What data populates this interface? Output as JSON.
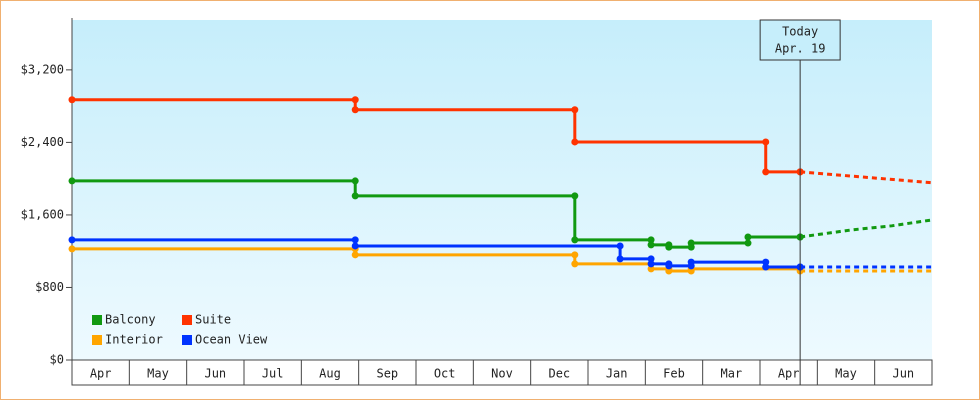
{
  "chart_data": {
    "type": "step-line",
    "xlim": [
      0,
      15
    ],
    "xticks": [
      {
        "value": 0,
        "label": "Apr"
      },
      {
        "value": 1,
        "label": "May"
      },
      {
        "value": 2,
        "label": "Jun"
      },
      {
        "value": 3,
        "label": "Jul"
      },
      {
        "value": 4,
        "label": "Aug"
      },
      {
        "value": 5,
        "label": "Sep"
      },
      {
        "value": 6,
        "label": "Oct"
      },
      {
        "value": 7,
        "label": "Nov"
      },
      {
        "value": 8,
        "label": "Dec"
      },
      {
        "value": 9,
        "label": "Jan"
      },
      {
        "value": 10,
        "label": "Feb"
      },
      {
        "value": 11,
        "label": "Mar"
      },
      {
        "value": 12,
        "label": "Apr"
      },
      {
        "value": 13,
        "label": "May"
      },
      {
        "value": 14,
        "label": "Jun"
      }
    ],
    "ylim": [
      0,
      3750
    ],
    "yticks": [
      {
        "value": 0,
        "label": "$0"
      },
      {
        "value": 800,
        "label": "$800"
      },
      {
        "value": 1600,
        "label": "$1,600"
      },
      {
        "value": 2400,
        "label": "$2,400"
      },
      {
        "value": 3200,
        "label": "$3,200"
      }
    ],
    "annotation": {
      "x": 12.7,
      "lines": [
        "Today",
        "Apr. 19"
      ]
    },
    "legend": "bottom-left",
    "series": [
      {
        "name": "Balcony",
        "color": "#119911",
        "x": [
          0,
          4.94,
          8.77,
          10.1,
          10.41,
          10.8,
          11.79,
          12.7
        ],
        "values": [
          1975,
          1810,
          1325,
          1270,
          1245,
          1290,
          1357,
          1357
        ],
        "forecast": {
          "x": [
            12.7,
            13.6,
            14.3,
            15
          ],
          "values": [
            1357,
            1435,
            1480,
            1545
          ]
        }
      },
      {
        "name": "Suite",
        "color": "#ff3300",
        "x": [
          0,
          4.94,
          8.77,
          12.1,
          12.7
        ],
        "values": [
          2870,
          2760,
          2405,
          2075,
          2075
        ],
        "forecast": {
          "x": [
            12.7,
            15
          ],
          "values": [
            2075,
            1955
          ]
        }
      },
      {
        "name": "Interior",
        "color": "#ffa500",
        "x": [
          0,
          4.94,
          8.77,
          10.1,
          10.41,
          10.8,
          12.7
        ],
        "values": [
          1225,
          1160,
          1060,
          1005,
          982,
          1005,
          982
        ],
        "forecast": {
          "x": [
            12.7,
            15
          ],
          "values": [
            982,
            982
          ]
        }
      },
      {
        "name": "Ocean View",
        "color": "#0033ff",
        "x": [
          0,
          4.94,
          9.56,
          10.1,
          10.41,
          10.8,
          12.1,
          12.7
        ],
        "values": [
          1325,
          1258,
          1115,
          1060,
          1038,
          1080,
          1026,
          1026
        ],
        "forecast": {
          "x": [
            12.7,
            15
          ],
          "values": [
            1026,
            1026
          ]
        }
      }
    ]
  }
}
